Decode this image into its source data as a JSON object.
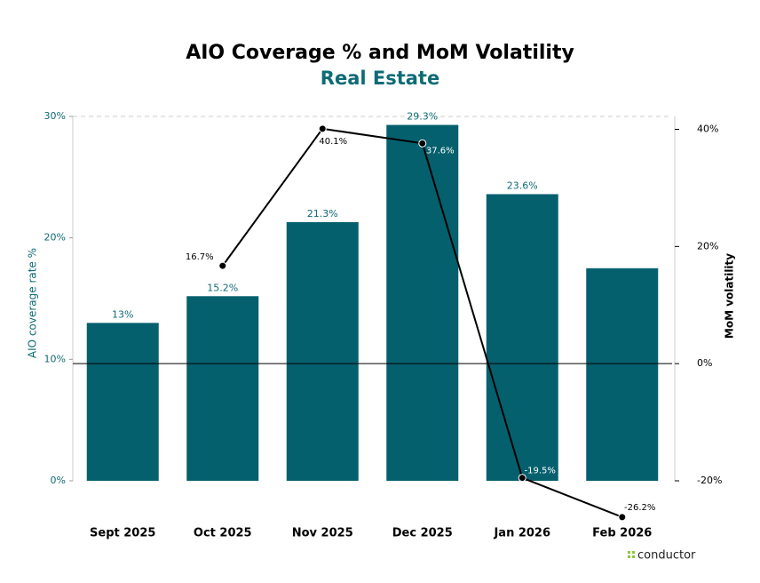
{
  "chart_data": {
    "type": "bar",
    "title": "AIO Coverage % and MoM Volatility",
    "subtitle": "Real Estate",
    "ylabel": "AIO coverage rate %",
    "y2label": "MoM volatility",
    "logo_text": "conductor",
    "categories": [
      "Sept 2025",
      "Oct 2025",
      "Nov 2025",
      "Dec 2025",
      "Jan 2026",
      "Feb 2026"
    ],
    "ylim": [
      0,
      30
    ],
    "yticks": [
      {
        "value": 0,
        "label": "0%"
      },
      {
        "value": 10,
        "label": "10%"
      },
      {
        "value": 20,
        "label": "20%"
      },
      {
        "value": 30,
        "label": "30%"
      }
    ],
    "y2lim": [
      -20,
      42.2
    ],
    "y2ticks": [
      {
        "value": -20,
        "label": "-20%"
      },
      {
        "value": 0,
        "label": "0%"
      },
      {
        "value": 20,
        "label": "20%"
      },
      {
        "value": 40,
        "label": "40%"
      }
    ],
    "series": [
      {
        "type": "bar",
        "color": "#05606e",
        "values": [
          13,
          15.2,
          21.3,
          29.3,
          23.6,
          17.5
        ],
        "value_labels": [
          "13%",
          "15.2%",
          "21.3%",
          "29.3%",
          "23.6%",
          null
        ]
      },
      {
        "type": "line",
        "axis": "y2",
        "color": "#000000",
        "values": [
          null,
          16.7,
          40.1,
          37.6,
          -19.5,
          -26.2
        ],
        "value_labels": [
          null,
          "16.7%",
          "40.1%",
          "37.6%",
          "-19.5%",
          "-26.2%"
        ]
      }
    ]
  }
}
